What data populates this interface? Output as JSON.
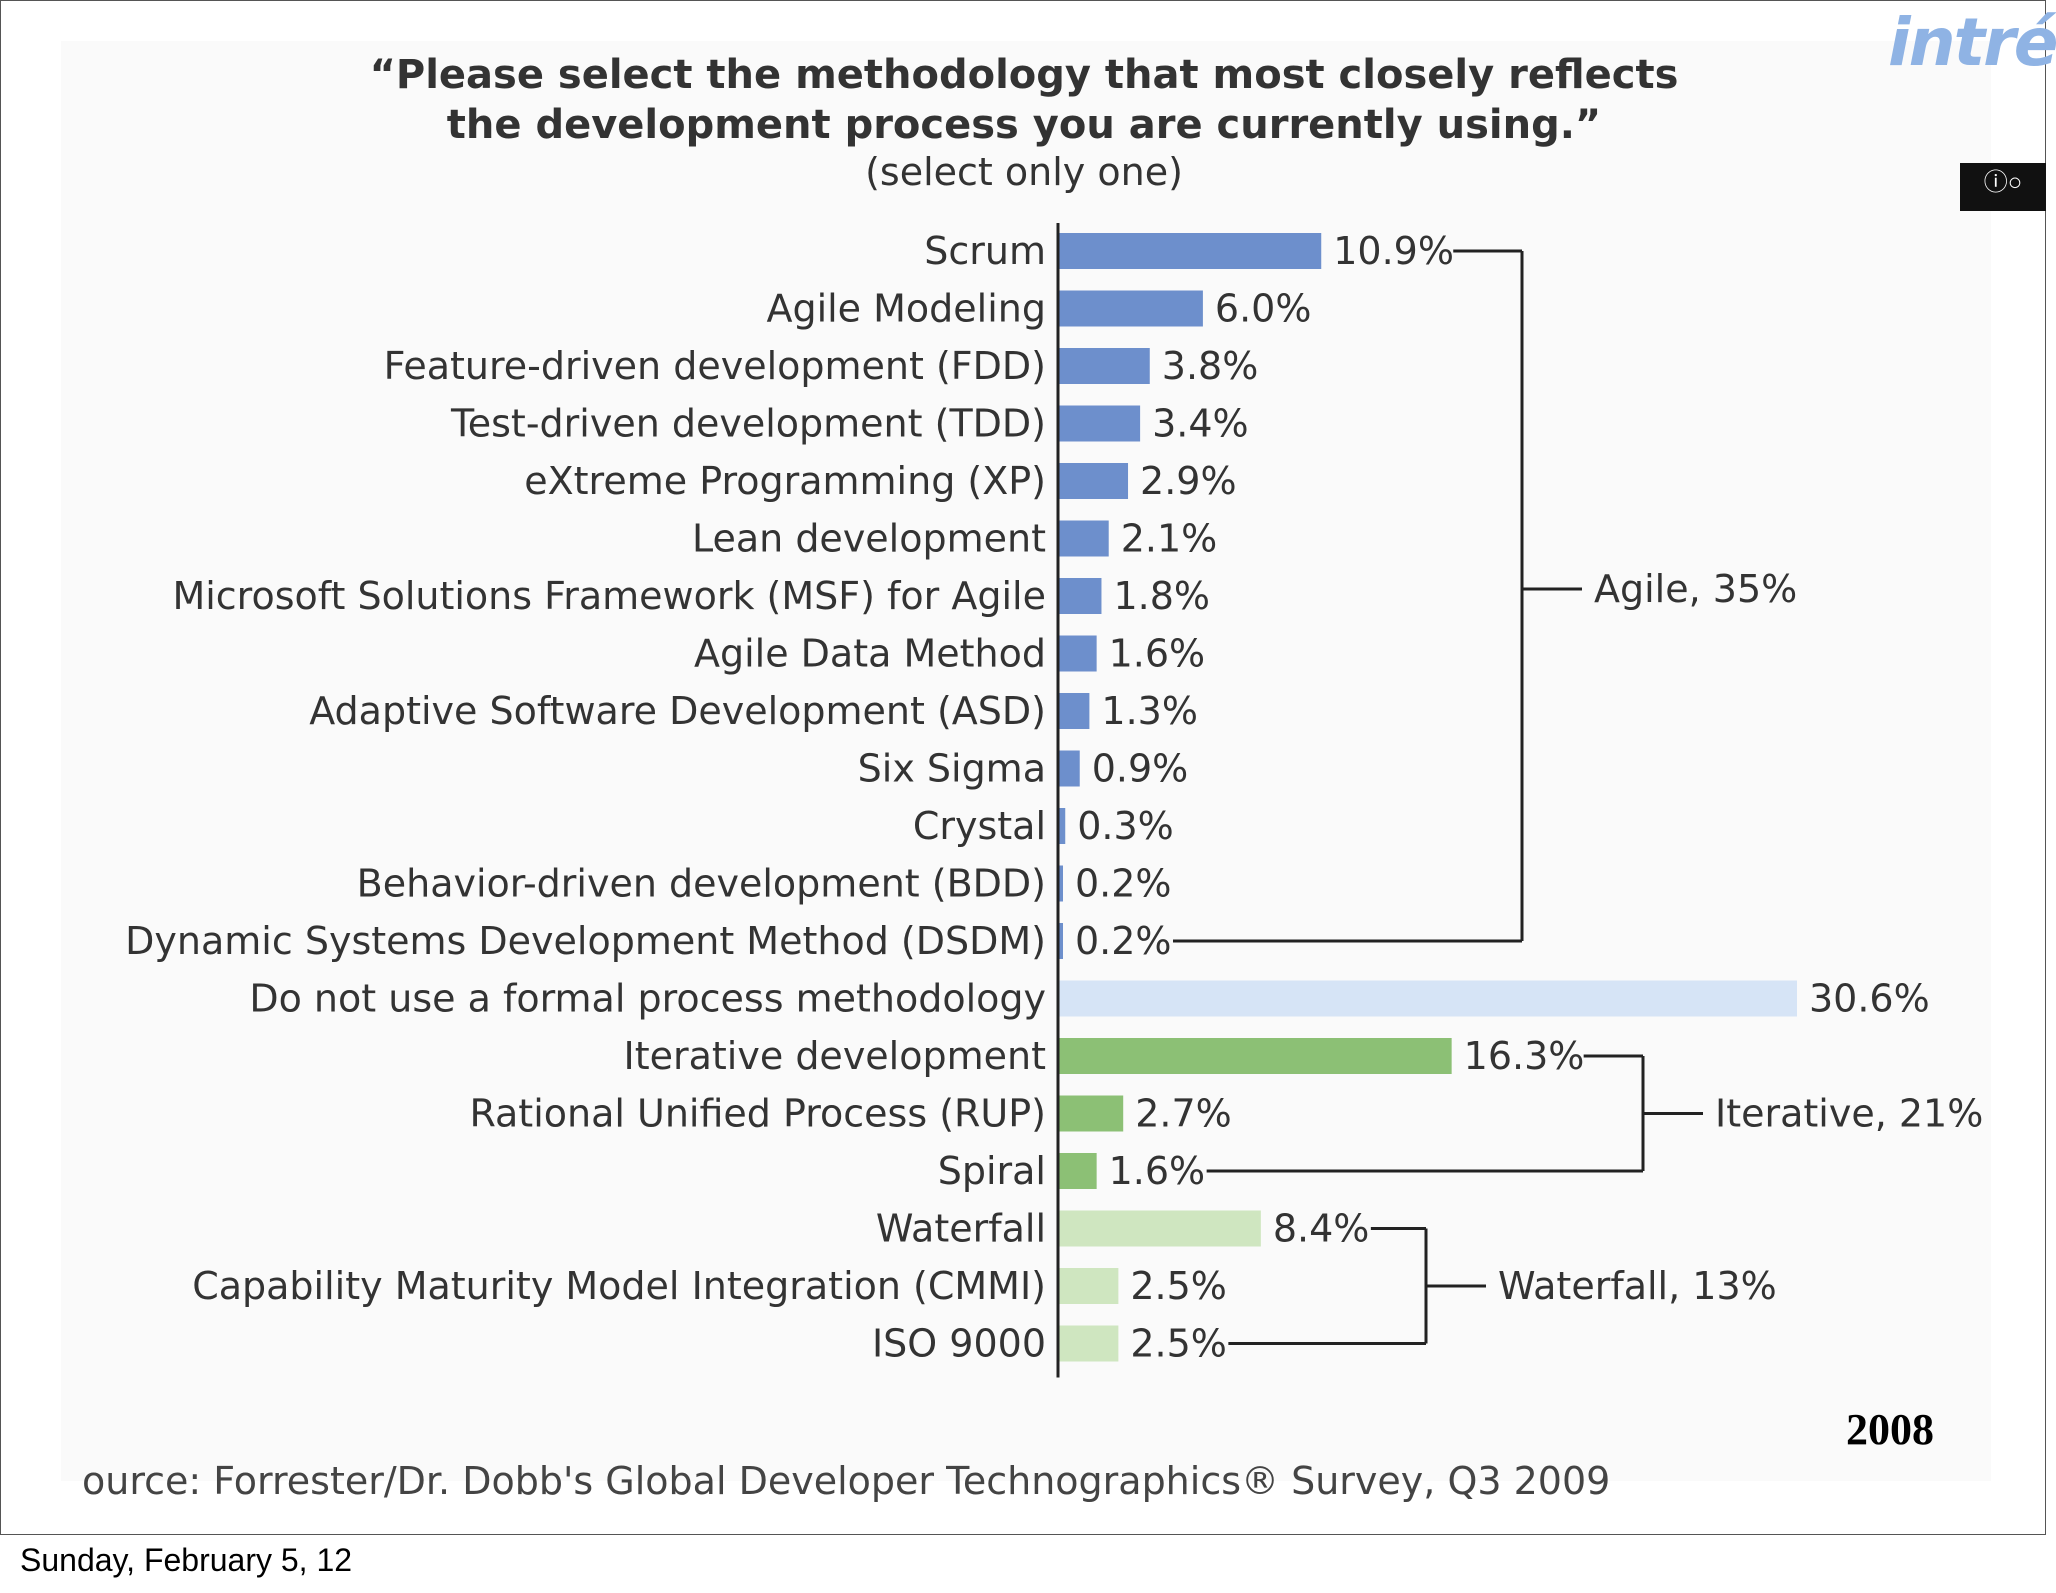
{
  "slide": {
    "logo_text": "intré",
    "cc_badge_icon": "cc-by-sa-icon",
    "year": "2008",
    "source": "ource: Forrester/Dr. Dobb's Global Developer Technographics® Survey, Q3 2009",
    "footer_date": "Sunday, February 5, 12"
  },
  "chart_data": {
    "type": "bar",
    "orientation": "horizontal",
    "title_line1": "“Please select the methodology that most closely reflects",
    "title_line2": "the development process you are currently using.”",
    "subtitle": "(select only one)",
    "unit": "%",
    "categories": [
      "Scrum",
      "Agile Modeling",
      "Feature-driven development (FDD)",
      "Test-driven development (TDD)",
      "eXtreme Programming (XP)",
      "Lean development",
      "Microsoft Solutions Framework (MSF) for Agile",
      "Agile Data Method",
      "Adaptive Software Development (ASD)",
      "Six Sigma",
      "Crystal",
      "Behavior-driven development (BDD)",
      "Dynamic Systems Development Method (DSDM)",
      "Do not use a formal process methodology",
      "Iterative development",
      "Rational Unified Process (RUP)",
      "Spiral",
      "Waterfall",
      "Capability Maturity Model Integration (CMMI)",
      "ISO 9000"
    ],
    "values": [
      10.9,
      6.0,
      3.8,
      3.4,
      2.9,
      2.1,
      1.8,
      1.6,
      1.3,
      0.9,
      0.3,
      0.2,
      0.2,
      30.6,
      16.3,
      2.7,
      1.6,
      8.4,
      2.5,
      2.5
    ],
    "value_labels": [
      "10.9%",
      "6.0%",
      "3.8%",
      "3.4%",
      "2.9%",
      "2.1%",
      "1.8%",
      "1.6%",
      "1.3%",
      "0.9%",
      "0.3%",
      "0.2%",
      "0.2%",
      "30.6%",
      "16.3%",
      "2.7%",
      "1.6%",
      "8.4%",
      "2.5%",
      "2.5%"
    ],
    "bar_groups": [
      "agile",
      "agile",
      "agile",
      "agile",
      "agile",
      "agile",
      "agile",
      "agile",
      "agile",
      "agile",
      "agile",
      "agile",
      "agile",
      "none",
      "iterative",
      "iterative",
      "iterative",
      "waterfall",
      "waterfall",
      "waterfall"
    ],
    "colors": {
      "agile": "#6d8fcc",
      "none": "#d6e4f6",
      "iterative": "#8cc075",
      "waterfall": "#cfe6c0",
      "axis": "#222222",
      "bracket": "#222222"
    },
    "groups": [
      {
        "name": "Agile, 35%",
        "from": 0,
        "to": 12
      },
      {
        "name": "Iterative, 21%",
        "from": 14,
        "to": 16
      },
      {
        "name": "Waterfall, 13%",
        "from": 17,
        "to": 19
      }
    ],
    "xlim": [
      0,
      31
    ]
  }
}
